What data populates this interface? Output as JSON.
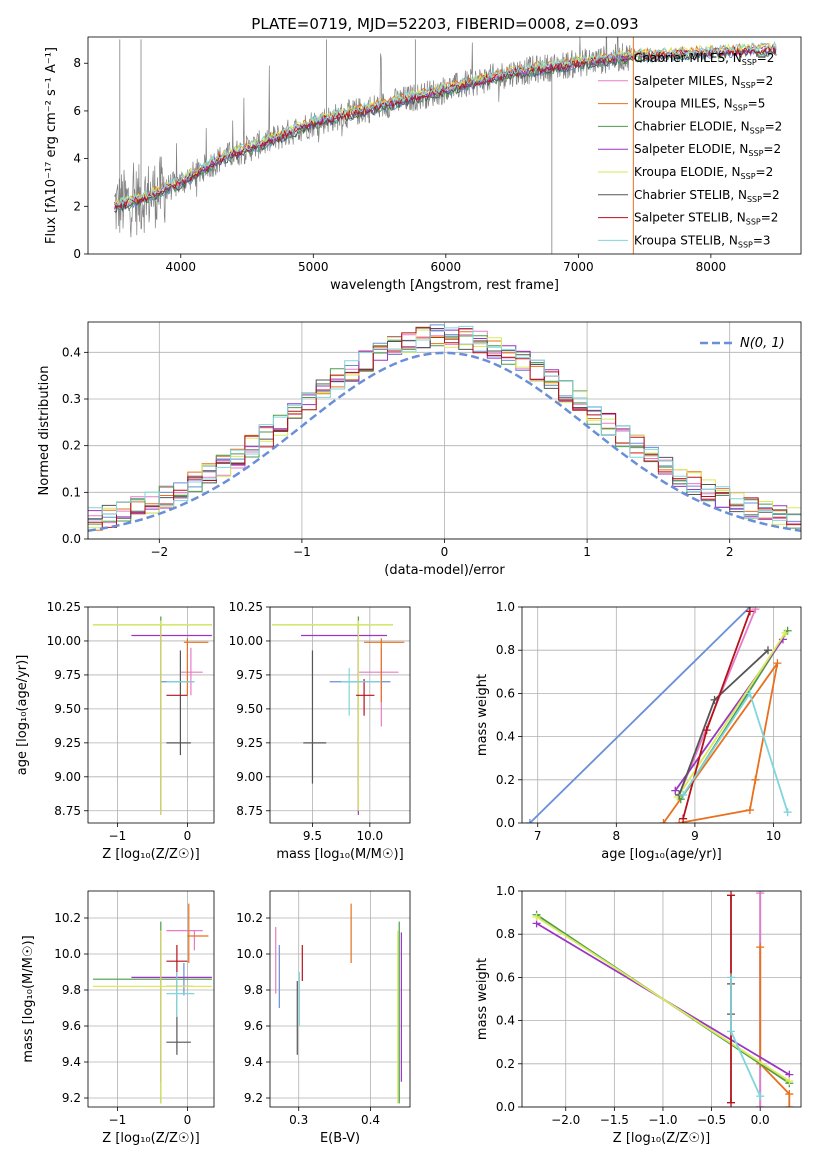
{
  "title": "PLATE=0719, MJD=52203, FIBERID=0008, z=0.093",
  "series": [
    {
      "key": "chabrier_miles",
      "label": "Chabrier MILES, N",
      "nssp": "=2",
      "color": "#6a8fd8"
    },
    {
      "key": "salpeter_miles",
      "label": "Salpeter MILES, N",
      "nssp": "=2",
      "color": "#e87bc6"
    },
    {
      "key": "kroupa_miles",
      "label": "Kroupa MILES, N",
      "nssp": "=5",
      "color": "#e8701e"
    },
    {
      "key": "chabrier_elodie",
      "label": "Chabrier ELODIE, N",
      "nssp": "=2",
      "color": "#4c9b4c"
    },
    {
      "key": "salpeter_elodie",
      "label": "Salpeter ELODIE, N",
      "nssp": "=2",
      "color": "#9b35c4"
    },
    {
      "key": "kroupa_elodie",
      "label": "Kroupa ELODIE, N",
      "nssp": "=2",
      "color": "#d9ea5a"
    },
    {
      "key": "chabrier_stelib",
      "label": "Chabrier STELIB, N",
      "nssp": "=2",
      "color": "#555555"
    },
    {
      "key": "salpeter_stelib",
      "label": "Salpeter STELIB, N",
      "nssp": "=2",
      "color": "#b5121b"
    },
    {
      "key": "kroupa_stelib",
      "label": "Kroupa STELIB, N",
      "nssp": "=3",
      "color": "#7fd6dc"
    }
  ],
  "chart_data": [
    {
      "id": "spectrum",
      "type": "line",
      "xlabel": "wavelength [Angstrom, rest frame]",
      "ylabel": "Flux [f_λ 10^-17 erg cm^-2 s^-1 A^-1]",
      "xlim": [
        3300,
        8680
      ],
      "ylim": [
        0,
        9.1
      ],
      "xticks": [
        4000,
        5000,
        6000,
        7000,
        8000
      ],
      "yticks": [
        0,
        2,
        4,
        6,
        8
      ],
      "legend": "top-right",
      "continuum": [
        [
          3500,
          2.0
        ],
        [
          3700,
          2.3
        ],
        [
          4000,
          3.0
        ],
        [
          4300,
          4.0
        ],
        [
          4600,
          4.6
        ],
        [
          5000,
          5.5
        ],
        [
          5500,
          6.2
        ],
        [
          6000,
          6.9
        ],
        [
          6500,
          7.6
        ],
        [
          7000,
          8.0
        ],
        [
          7400,
          8.3
        ]
      ]
    },
    {
      "id": "residuals",
      "type": "line",
      "xlabel": "(data-model)/error",
      "ylabel": "Normed distribution",
      "xlim": [
        -2.5,
        2.5
      ],
      "ylim": [
        0,
        0.465
      ],
      "xticks": [
        -2,
        -1,
        0,
        1,
        2
      ],
      "yticks": [
        0.0,
        0.1,
        0.2,
        0.3,
        0.4
      ],
      "grid": true,
      "legend": "top-right",
      "normal_label": "N(0, 1)",
      "normal_color": "#6a8fd8"
    },
    {
      "id": "age_vs_Z",
      "type": "scatter",
      "xlabel": "Z [log10(Z/Z☉)]",
      "ylabel": "age [log10(age/yr)]",
      "xlim": [
        -1.42,
        0.38
      ],
      "ylim": [
        8.66,
        10.25
      ],
      "xticks": [
        -1,
        0
      ],
      "yticks": [
        8.75,
        9.0,
        9.25,
        9.5,
        9.75,
        10.0,
        10.25
      ],
      "grid": true,
      "points": [
        {
          "s": "chabrier_miles",
          "x": -0.28,
          "y": 9.7,
          "xl": -0.39,
          "xh": 0.1,
          "yl": 9.7,
          "yh": 9.7
        },
        {
          "s": "salpeter_miles",
          "x": 0.05,
          "y": 9.77,
          "xl": -0.1,
          "xh": 0.22,
          "yl": 9.6,
          "yh": 9.95
        },
        {
          "s": "kroupa_miles",
          "x": 0.0,
          "y": 9.99,
          "xl": -0.05,
          "xh": 0.3,
          "yl": 9.6,
          "yh": 10.02
        },
        {
          "s": "chabrier_elodie",
          "x": -0.38,
          "y": 10.12,
          "xl": -1.35,
          "xh": 0.35,
          "yl": 8.75,
          "yh": 10.18
        },
        {
          "s": "salpeter_elodie",
          "x": -0.38,
          "y": 10.04,
          "xl": -0.8,
          "xh": 0.35,
          "yl": 8.72,
          "yh": 10.12
        },
        {
          "s": "kroupa_elodie",
          "x": -0.38,
          "y": 10.12,
          "xl": -1.35,
          "xh": 0.35,
          "yl": 8.72,
          "yh": 10.15
        },
        {
          "s": "chabrier_stelib",
          "x": -0.1,
          "y": 9.25,
          "xl": -0.3,
          "xh": 0.05,
          "yl": 9.16,
          "yh": 9.93
        },
        {
          "s": "salpeter_stelib",
          "x": -0.05,
          "y": 9.6,
          "xl": -0.3,
          "xh": 0.0,
          "yl": 9.6,
          "yh": 9.6
        },
        {
          "s": "kroupa_stelib",
          "x": -0.1,
          "y": 9.7,
          "xl": -0.3,
          "xh": 0.1,
          "yl": 9.7,
          "yh": 9.7
        }
      ]
    },
    {
      "id": "age_vs_mass",
      "type": "scatter",
      "xlabel": "mass [log10(M/M☉)]",
      "ylabel": "",
      "xlim": [
        9.13,
        10.35
      ],
      "ylim": [
        8.66,
        10.25
      ],
      "xticks": [
        9.5,
        10.0
      ],
      "yticks": [
        8.75,
        9.0,
        9.25,
        9.5,
        9.75,
        10.0,
        10.25
      ],
      "grid": true,
      "points": [
        {
          "s": "chabrier_miles",
          "x": 9.88,
          "y": 9.7,
          "xl": 9.65,
          "xh": 10.18,
          "yl": 9.7,
          "yh": 9.7
        },
        {
          "s": "salpeter_miles",
          "x": 10.1,
          "y": 9.77,
          "xl": 9.9,
          "xh": 10.25,
          "yl": 9.37,
          "yh": 9.95
        },
        {
          "s": "kroupa_miles",
          "x": 10.1,
          "y": 9.99,
          "xl": 9.95,
          "xh": 10.3,
          "yl": 9.55,
          "yh": 10.02
        },
        {
          "s": "chabrier_elodie",
          "x": 9.9,
          "y": 10.12,
          "xl": 9.15,
          "xh": 10.2,
          "yl": 8.75,
          "yh": 10.18
        },
        {
          "s": "salpeter_elodie",
          "x": 9.9,
          "y": 10.04,
          "xl": 9.4,
          "xh": 10.15,
          "yl": 8.72,
          "yh": 10.12
        },
        {
          "s": "kroupa_elodie",
          "x": 9.9,
          "y": 10.12,
          "xl": 9.15,
          "xh": 10.2,
          "yl": 8.75,
          "yh": 10.15
        },
        {
          "s": "chabrier_stelib",
          "x": 9.5,
          "y": 9.25,
          "xl": 9.42,
          "xh": 9.62,
          "yl": 8.95,
          "yh": 9.93
        },
        {
          "s": "salpeter_stelib",
          "x": 9.95,
          "y": 9.6,
          "xl": 9.88,
          "xh": 10.04,
          "yl": 9.45,
          "yh": 9.72
        },
        {
          "s": "kroupa_stelib",
          "x": 9.82,
          "y": 9.7,
          "xl": 9.75,
          "xh": 10.1,
          "yl": 9.45,
          "yh": 9.8
        }
      ]
    },
    {
      "id": "weight_vs_age",
      "type": "line",
      "xlabel": "age [log10(age/yr)]",
      "ylabel": "mass weight",
      "xlim": [
        6.8,
        10.35
      ],
      "ylim": [
        0,
        1
      ],
      "xticks": [
        7,
        8,
        9,
        10
      ],
      "yticks": [
        0.0,
        0.2,
        0.4,
        0.6,
        0.8,
        1.0
      ],
      "grid": true,
      "lines": [
        {
          "s": "chabrier_miles",
          "x": [
            6.9,
            9.7
          ],
          "y": [
            0.0,
            1.0
          ]
        },
        {
          "s": "salpeter_miles",
          "x": [
            8.8,
            9.77
          ],
          "y": [
            0.13,
            0.99
          ]
        },
        {
          "s": "kroupa_miles",
          "x": [
            8.8,
            9.7,
            9.77,
            10.05,
            8.6
          ],
          "y": [
            0.0,
            0.06,
            0.2,
            0.74,
            0.0
          ]
        },
        {
          "s": "chabrier_elodie",
          "x": [
            8.82,
            10.18
          ],
          "y": [
            0.11,
            0.89
          ]
        },
        {
          "s": "salpeter_elodie",
          "x": [
            8.75,
            10.12
          ],
          "y": [
            0.15,
            0.85
          ]
        },
        {
          "s": "kroupa_elodie",
          "x": [
            8.78,
            10.15
          ],
          "y": [
            0.12,
            0.88
          ]
        },
        {
          "s": "chabrier_stelib",
          "x": [
            8.8,
            9.25,
            9.93
          ],
          "y": [
            0.13,
            0.57,
            0.8
          ]
        },
        {
          "s": "salpeter_stelib",
          "x": [
            8.85,
            9.15,
            9.7
          ],
          "y": [
            0.02,
            0.43,
            0.98
          ]
        },
        {
          "s": "kroupa_stelib",
          "x": [
            8.85,
            9.7,
            10.18
          ],
          "y": [
            0.13,
            0.6,
            0.05
          ]
        }
      ]
    },
    {
      "id": "mass_vs_Z",
      "type": "scatter",
      "xlabel": "Z [log10(Z/Z☉)]",
      "ylabel": "mass [log10(M/M☉)]",
      "xlim": [
        -1.42,
        0.38
      ],
      "ylim": [
        9.15,
        10.35
      ],
      "xticks": [
        -1,
        0
      ],
      "yticks": [
        9.2,
        9.4,
        9.6,
        9.8,
        10.0,
        10.2
      ],
      "grid": true,
      "points": [
        {
          "s": "chabrier_miles",
          "x": -0.05,
          "y": 9.82,
          "xl": -0.3,
          "xh": 0.08,
          "yl": 9.77,
          "yh": 9.95
        },
        {
          "s": "salpeter_miles",
          "x": 0.1,
          "y": 10.13,
          "xl": -0.3,
          "xh": 0.22,
          "yl": 10.02,
          "yh": 10.13
        },
        {
          "s": "kroupa_miles",
          "x": 0.02,
          "y": 10.1,
          "xl": 0.0,
          "xh": 0.3,
          "yl": 9.95,
          "yh": 10.28
        },
        {
          "s": "chabrier_elodie",
          "x": -0.38,
          "y": 9.86,
          "xl": -1.35,
          "xh": 0.35,
          "yl": 9.17,
          "yh": 10.18
        },
        {
          "s": "salpeter_elodie",
          "x": -0.38,
          "y": 9.87,
          "xl": -0.8,
          "xh": 0.35,
          "yl": 9.29,
          "yh": 10.12
        },
        {
          "s": "kroupa_elodie",
          "x": -0.38,
          "y": 9.82,
          "xl": -1.35,
          "xh": 0.35,
          "yl": 9.17,
          "yh": 10.13
        },
        {
          "s": "chabrier_stelib",
          "x": -0.15,
          "y": 9.51,
          "xl": -0.3,
          "xh": 0.05,
          "yl": 9.44,
          "yh": 9.85
        },
        {
          "s": "salpeter_stelib",
          "x": -0.15,
          "y": 9.96,
          "xl": -0.3,
          "xh": 0.0,
          "yl": 9.85,
          "yh": 10.05
        },
        {
          "s": "kroupa_stelib",
          "x": -0.15,
          "y": 9.78,
          "xl": -0.3,
          "xh": 0.1,
          "yl": 9.65,
          "yh": 9.9
        }
      ]
    },
    {
      "id": "mass_vs_ebv",
      "type": "scatter",
      "xlabel": "E(B-V)",
      "ylabel": "",
      "xlim": [
        0.26,
        0.455
      ],
      "ylim": [
        9.15,
        10.35
      ],
      "xticks": [
        0.3,
        0.4
      ],
      "yticks": [
        9.2,
        9.4,
        9.6,
        9.8,
        10.0,
        10.2
      ],
      "grid": true,
      "points": [
        {
          "s": "chabrier_miles",
          "x": 0.273,
          "y": 9.9,
          "yl": 9.7,
          "yh": 10.05
        },
        {
          "s": "salpeter_miles",
          "x": 0.268,
          "y": 10.0,
          "yl": 9.78,
          "yh": 10.15
        },
        {
          "s": "kroupa_miles",
          "x": 0.373,
          "y": 10.1,
          "yl": 9.95,
          "yh": 10.28
        },
        {
          "s": "chabrier_elodie",
          "x": 0.44,
          "y": 9.86,
          "yl": 9.17,
          "yh": 10.18
        },
        {
          "s": "salpeter_elodie",
          "x": 0.443,
          "y": 9.87,
          "yl": 9.29,
          "yh": 10.12
        },
        {
          "s": "kroupa_elodie",
          "x": 0.438,
          "y": 9.82,
          "yl": 9.17,
          "yh": 10.13
        },
        {
          "s": "chabrier_stelib",
          "x": 0.298,
          "y": 9.7,
          "yl": 9.44,
          "yh": 9.85
        },
        {
          "s": "salpeter_stelib",
          "x": 0.305,
          "y": 9.96,
          "yl": 9.85,
          "yh": 10.05
        },
        {
          "s": "kroupa_stelib",
          "x": 0.301,
          "y": 9.78,
          "yl": 9.6,
          "yh": 9.9
        }
      ]
    },
    {
      "id": "weight_vs_Z",
      "type": "line",
      "xlabel": "Z [log10(Z/Z☉)]",
      "ylabel": "mass weight",
      "xlim": [
        -2.45,
        0.42
      ],
      "ylim": [
        0,
        1
      ],
      "xticks": [
        -2.0,
        -1.5,
        -1.0,
        -0.5,
        0.0
      ],
      "yticks": [
        0.0,
        0.2,
        0.4,
        0.6,
        0.8,
        1.0
      ],
      "grid": true,
      "lines": [
        {
          "s": "chabrier_miles",
          "x": [
            0.0,
            0.0
          ],
          "y": [
            0.0,
            1.0
          ]
        },
        {
          "s": "salpeter_miles",
          "x": [
            0.0,
            0.0
          ],
          "y": [
            0.0,
            0.99
          ]
        },
        {
          "s": "kroupa_miles",
          "x": [
            0.0,
            0.0,
            0.3,
            0.3
          ],
          "y": [
            0.74,
            0.2,
            0.06,
            0.0
          ]
        },
        {
          "s": "chabrier_elodie",
          "x": [
            -2.3,
            0.3
          ],
          "y": [
            0.89,
            0.11
          ]
        },
        {
          "s": "salpeter_elodie",
          "x": [
            -2.3,
            0.3
          ],
          "y": [
            0.85,
            0.15
          ]
        },
        {
          "s": "kroupa_elodie",
          "x": [
            -2.3,
            0.3
          ],
          "y": [
            0.88,
            0.12
          ]
        },
        {
          "s": "chabrier_stelib",
          "x": [
            -0.3,
            -0.3
          ],
          "y": [
            0.57,
            0.43
          ]
        },
        {
          "s": "salpeter_stelib",
          "x": [
            -0.3,
            -0.3
          ],
          "y": [
            0.98,
            0.02
          ]
        },
        {
          "s": "kroupa_stelib",
          "x": [
            -0.3,
            -0.3,
            0.0
          ],
          "y": [
            0.6,
            0.35,
            0.05
          ]
        }
      ]
    }
  ]
}
